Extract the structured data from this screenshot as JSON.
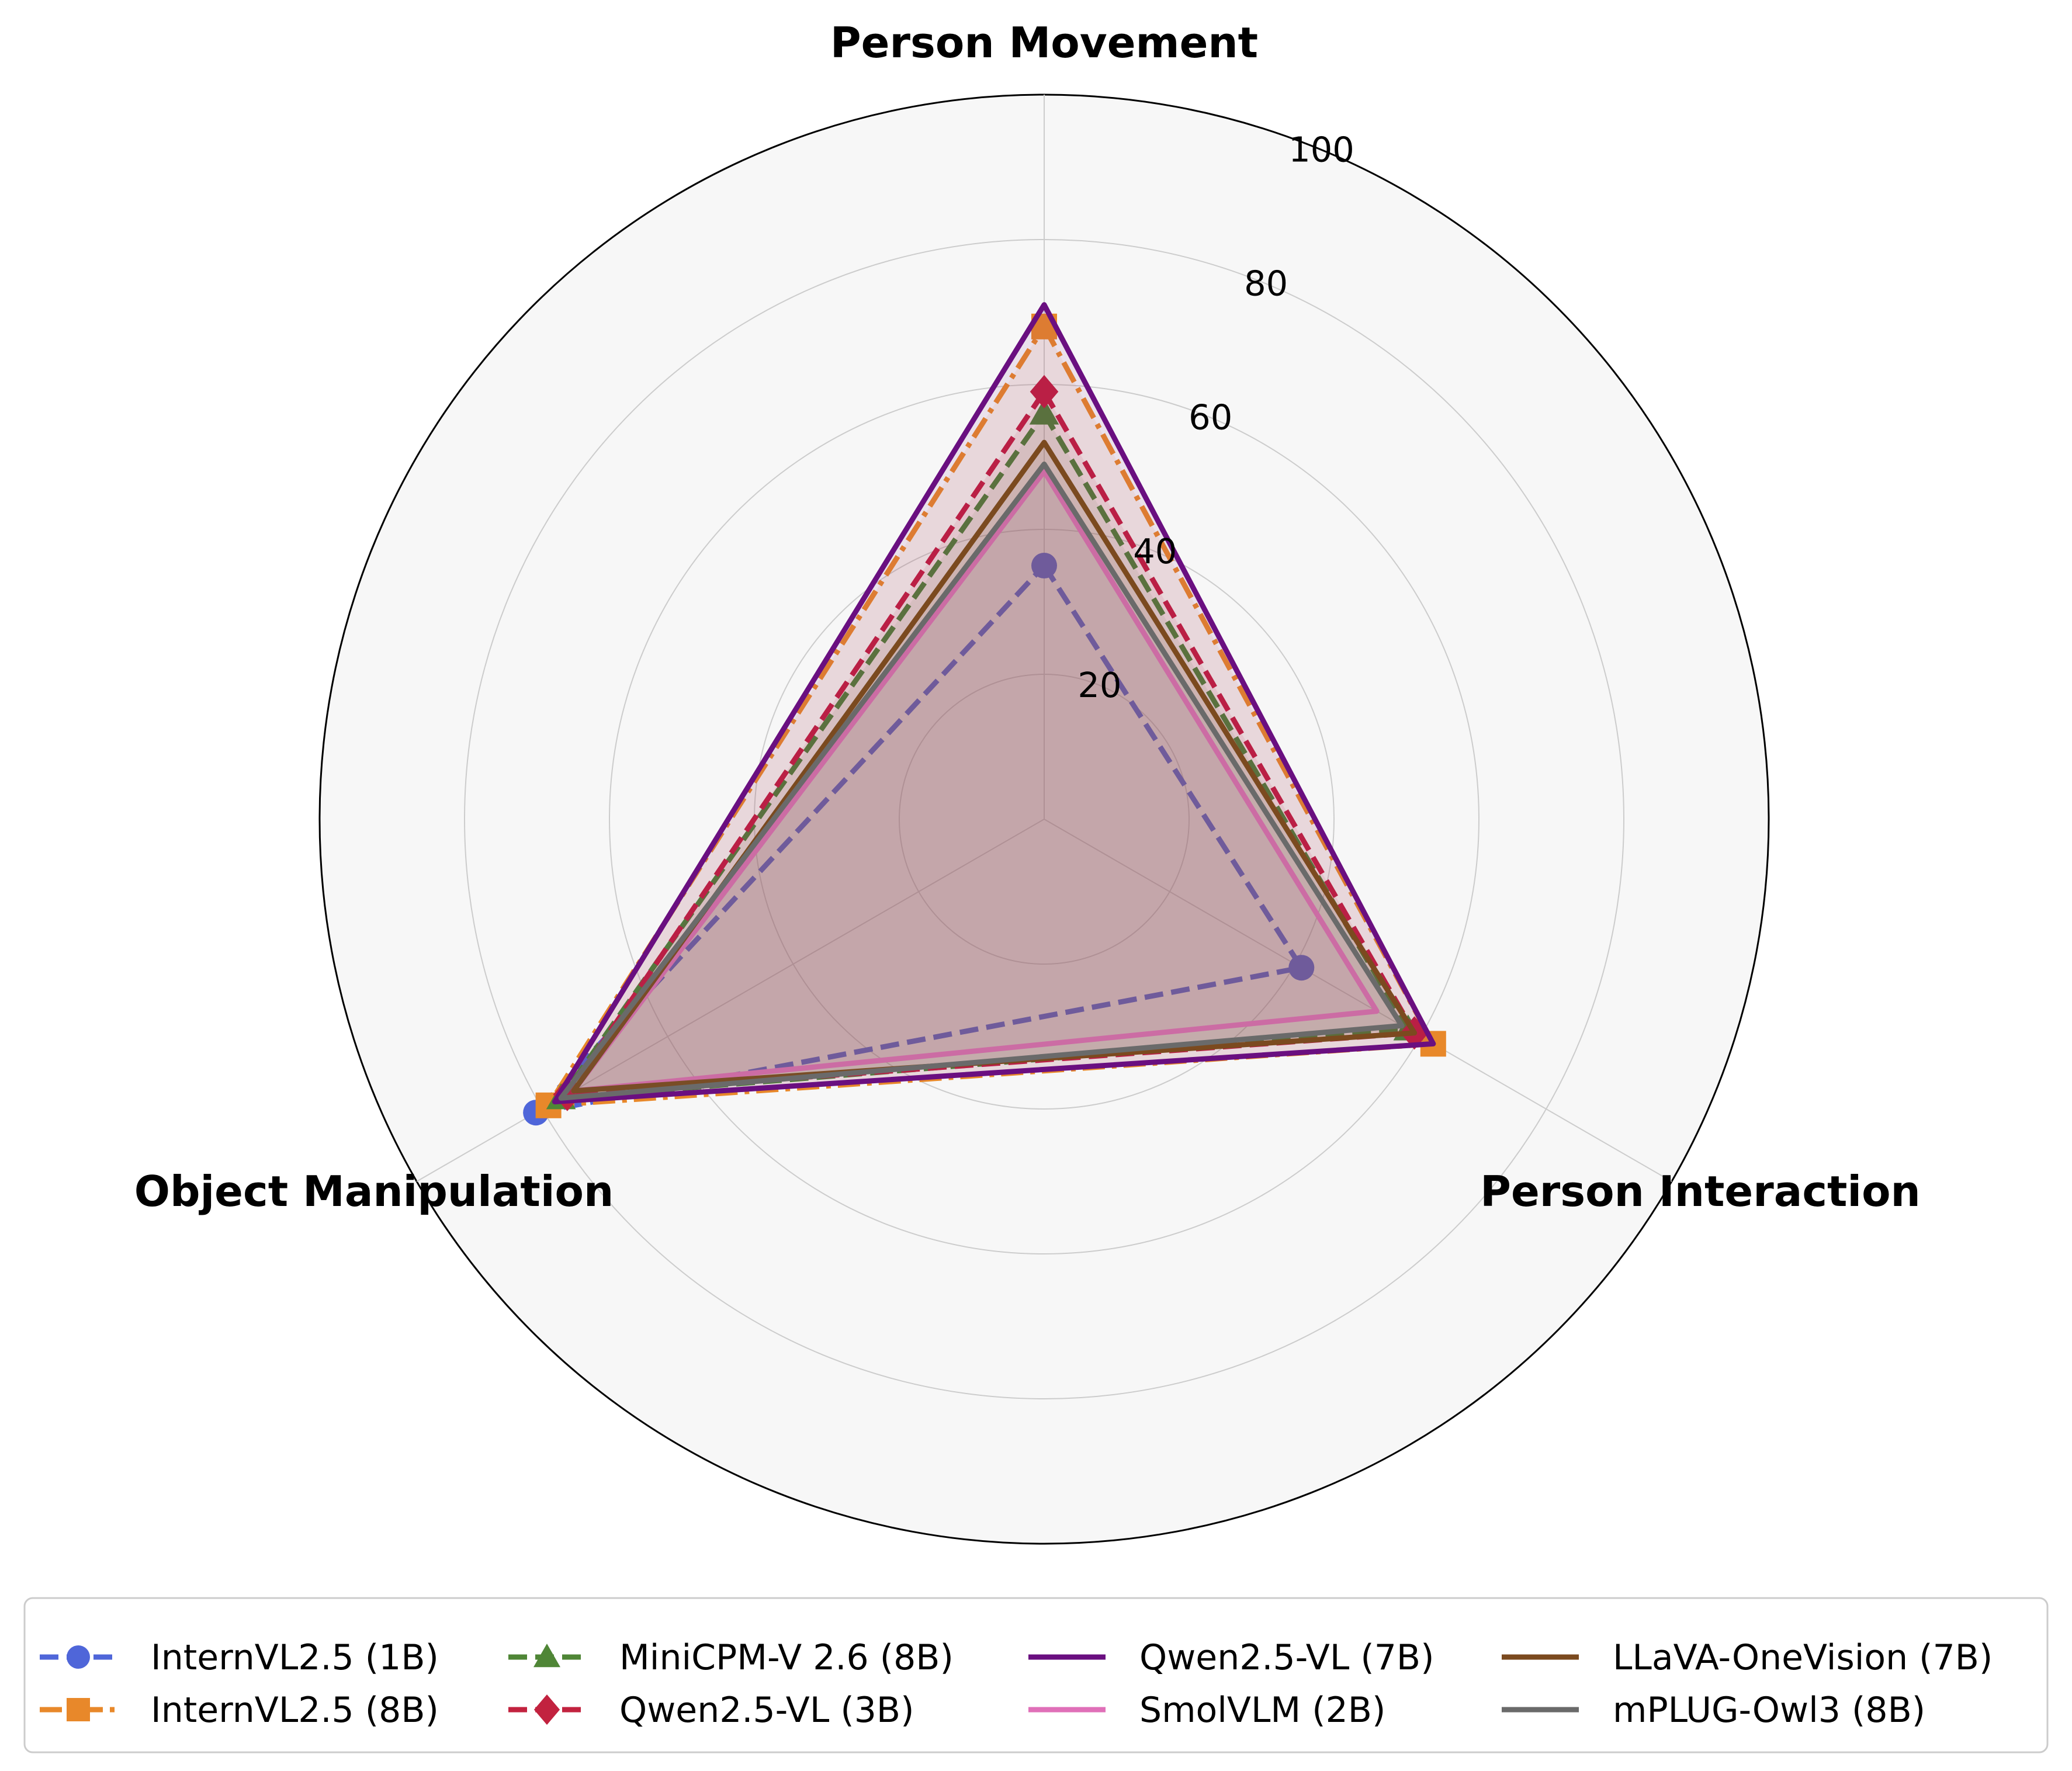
{
  "chart_data": {
    "type": "radar",
    "axes": [
      "Person Movement",
      "Person Interaction",
      "Object Manipulation"
    ],
    "rlim": [
      0,
      100
    ],
    "rticks": [
      "20",
      "40",
      "60",
      "80",
      "100"
    ],
    "grid": true,
    "legend_position": "bottom",
    "series": [
      {
        "name": "InternVL2.5 (1B)",
        "values": [
          35,
          41,
          81
        ],
        "color": "#4f66d9",
        "dash": "dashed",
        "marker": "circle",
        "fill": false
      },
      {
        "name": "InternVL2.5 (8B)",
        "values": [
          68,
          62,
          79
        ],
        "color": "#e8882a",
        "dash": "dashdot",
        "marker": "square",
        "fill": true
      },
      {
        "name": "MiniCPM-V 2.6 (8B)",
        "values": [
          56,
          58,
          77
        ],
        "color": "#4f8636",
        "dash": "dashed",
        "marker": "triangle",
        "fill": true
      },
      {
        "name": "Qwen2.5-VL (3B)",
        "values": [
          59,
          59,
          76
        ],
        "color": "#c2223f",
        "dash": "dashed",
        "marker": "diamond",
        "fill": true
      },
      {
        "name": "Qwen2.5-VL (7B)",
        "values": [
          71,
          62,
          78
        ],
        "color": "#6a0f80",
        "dash": "solid",
        "marker": "none",
        "fill": true
      },
      {
        "name": "SmolVLM (2B)",
        "values": [
          48,
          53,
          75
        ],
        "color": "#e070b8",
        "dash": "solid",
        "marker": "none",
        "fill": true
      },
      {
        "name": "LLaVA-OneVision (7B)",
        "values": [
          52,
          59,
          75
        ],
        "color": "#7b4a1f",
        "dash": "solid",
        "marker": "none",
        "fill": true
      },
      {
        "name": "mPLUG-Owl3 (8B)",
        "values": [
          49,
          57,
          77
        ],
        "color": "#6a6a6a",
        "dash": "solid",
        "marker": "none",
        "fill": true
      }
    ]
  }
}
